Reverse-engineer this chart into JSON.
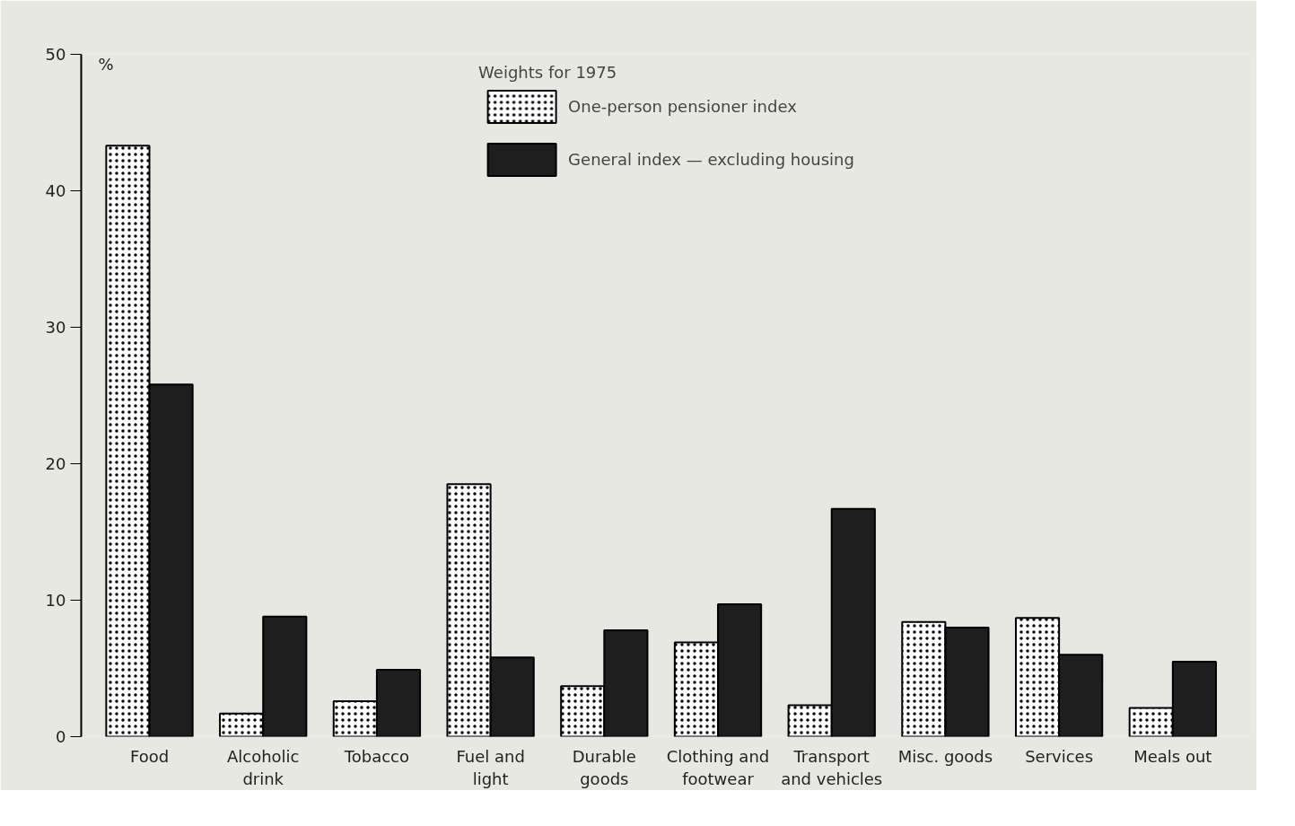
{
  "chart_data": {
    "type": "bar",
    "legend_title": "Weights for 1975",
    "ylabel": "%",
    "categories": [
      "Food",
      "Alcoholic drink",
      "Tobacco",
      "Fuel and light",
      "Durable goods",
      "Clothing and footwear",
      "Transport and vehicles",
      "Misc. goods",
      "Services",
      "Meals out"
    ],
    "series": [
      {
        "name": "One-person pensioner index",
        "color": "#ffffff",
        "values": [
          43.3,
          1.7,
          2.6,
          18.5,
          3.7,
          6.9,
          2.3,
          8.4,
          8.7,
          2.1
        ]
      },
      {
        "name": "General index — excluding housing",
        "color": "#1e1e1e",
        "values": [
          25.8,
          8.8,
          4.9,
          5.8,
          7.8,
          9.7,
          16.7,
          8.0,
          6.0,
          5.5
        ]
      }
    ],
    "ylim": [
      0,
      50
    ],
    "yticks": [
      0,
      10,
      20,
      30,
      40,
      50
    ],
    "legend": "top"
  }
}
